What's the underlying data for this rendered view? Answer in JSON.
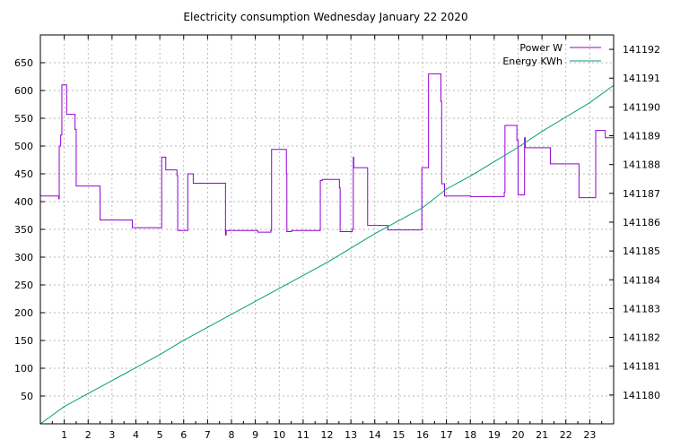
{
  "chart_data": {
    "type": "line",
    "title": "Electricity consumption Wednesday January 22 2020",
    "xlabel": "",
    "ylabel": "",
    "y2label": "",
    "grid": true,
    "legend_position": "top-right",
    "xlim": [
      0,
      24
    ],
    "ylim": [
      0,
      700
    ],
    "y2lim": [
      141179,
      141192.5
    ],
    "xticks": [
      1,
      2,
      3,
      4,
      5,
      6,
      7,
      8,
      9,
      10,
      11,
      12,
      13,
      14,
      15,
      16,
      17,
      18,
      19,
      20,
      21,
      22,
      23
    ],
    "yticks": [
      50,
      100,
      150,
      200,
      250,
      300,
      350,
      400,
      450,
      500,
      550,
      600,
      650
    ],
    "y2ticks": [
      141180,
      141181,
      141182,
      141183,
      141184,
      141185,
      141186,
      141187,
      141188,
      141189,
      141190,
      141191,
      141192
    ],
    "series": [
      {
        "name": "Power W",
        "axis": "left",
        "color": "#9400d3",
        "step": true,
        "points": [
          [
            0.0,
            410
          ],
          [
            0.75,
            410
          ],
          [
            0.77,
            405
          ],
          [
            0.79,
            500
          ],
          [
            0.85,
            520
          ],
          [
            0.9,
            610
          ],
          [
            1.1,
            610
          ],
          [
            1.1,
            557
          ],
          [
            1.4,
            557
          ],
          [
            1.45,
            530
          ],
          [
            1.5,
            428
          ],
          [
            2.5,
            428
          ],
          [
            2.5,
            367
          ],
          [
            3.85,
            367
          ],
          [
            3.85,
            353
          ],
          [
            5.05,
            353
          ],
          [
            5.08,
            480
          ],
          [
            5.25,
            480
          ],
          [
            5.25,
            457
          ],
          [
            5.7,
            457
          ],
          [
            5.72,
            447
          ],
          [
            5.75,
            348
          ],
          [
            6.15,
            348
          ],
          [
            6.17,
            450
          ],
          [
            6.4,
            450
          ],
          [
            6.4,
            433
          ],
          [
            7.7,
            433
          ],
          [
            7.75,
            340
          ],
          [
            7.78,
            348
          ],
          [
            9.1,
            348
          ],
          [
            9.1,
            345
          ],
          [
            9.6,
            345
          ],
          [
            9.65,
            348
          ],
          [
            9.68,
            494
          ],
          [
            10.25,
            494
          ],
          [
            10.3,
            450
          ],
          [
            10.32,
            346
          ],
          [
            10.5,
            346
          ],
          [
            10.52,
            348
          ],
          [
            11.7,
            348
          ],
          [
            11.72,
            438
          ],
          [
            11.8,
            440
          ],
          [
            12.5,
            440
          ],
          [
            12.52,
            425
          ],
          [
            12.55,
            346
          ],
          [
            13.0,
            346
          ],
          [
            13.05,
            350
          ],
          [
            13.1,
            480
          ],
          [
            13.12,
            461
          ],
          [
            13.7,
            461
          ],
          [
            13.7,
            357
          ],
          [
            14.5,
            357
          ],
          [
            14.55,
            349
          ],
          [
            15.95,
            349
          ],
          [
            15.97,
            461
          ],
          [
            16.2,
            461
          ],
          [
            16.25,
            630
          ],
          [
            16.75,
            630
          ],
          [
            16.77,
            580
          ],
          [
            16.8,
            432
          ],
          [
            16.9,
            432
          ],
          [
            16.92,
            410
          ],
          [
            18.0,
            410
          ],
          [
            18.02,
            409
          ],
          [
            19.4,
            409
          ],
          [
            19.42,
            417
          ],
          [
            19.45,
            537
          ],
          [
            19.9,
            537
          ],
          [
            19.95,
            510
          ],
          [
            20.0,
            412
          ],
          [
            20.25,
            412
          ],
          [
            20.27,
            515
          ],
          [
            20.3,
            497
          ],
          [
            21.35,
            497
          ],
          [
            21.35,
            468
          ],
          [
            22.55,
            468
          ],
          [
            22.55,
            407
          ],
          [
            23.2,
            407
          ],
          [
            23.25,
            528
          ],
          [
            23.65,
            528
          ],
          [
            23.65,
            515
          ],
          [
            24.0,
            515
          ]
        ]
      },
      {
        "name": "Energy KWh",
        "axis": "right",
        "color": "#009e73",
        "step": false,
        "points": [
          [
            0.0,
            141179.0
          ],
          [
            0.5,
            141179.3
          ],
          [
            1.0,
            141179.6
          ],
          [
            2.0,
            141180.05
          ],
          [
            3.0,
            141180.5
          ],
          [
            4.0,
            141180.95
          ],
          [
            5.0,
            141181.4
          ],
          [
            6.0,
            141181.9
          ],
          [
            7.0,
            141182.35
          ],
          [
            8.0,
            141182.8
          ],
          [
            9.0,
            141183.25
          ],
          [
            10.0,
            141183.7
          ],
          [
            11.0,
            141184.15
          ],
          [
            12.0,
            141184.6
          ],
          [
            13.0,
            141185.1
          ],
          [
            14.0,
            141185.6
          ],
          [
            15.0,
            141186.05
          ],
          [
            16.0,
            141186.5
          ],
          [
            17.0,
            141187.15
          ],
          [
            18.0,
            141187.6
          ],
          [
            19.0,
            141188.1
          ],
          [
            20.0,
            141188.6
          ],
          [
            21.0,
            141189.15
          ],
          [
            22.0,
            141189.65
          ],
          [
            23.0,
            141190.15
          ],
          [
            24.0,
            141190.75
          ]
        ]
      }
    ]
  }
}
